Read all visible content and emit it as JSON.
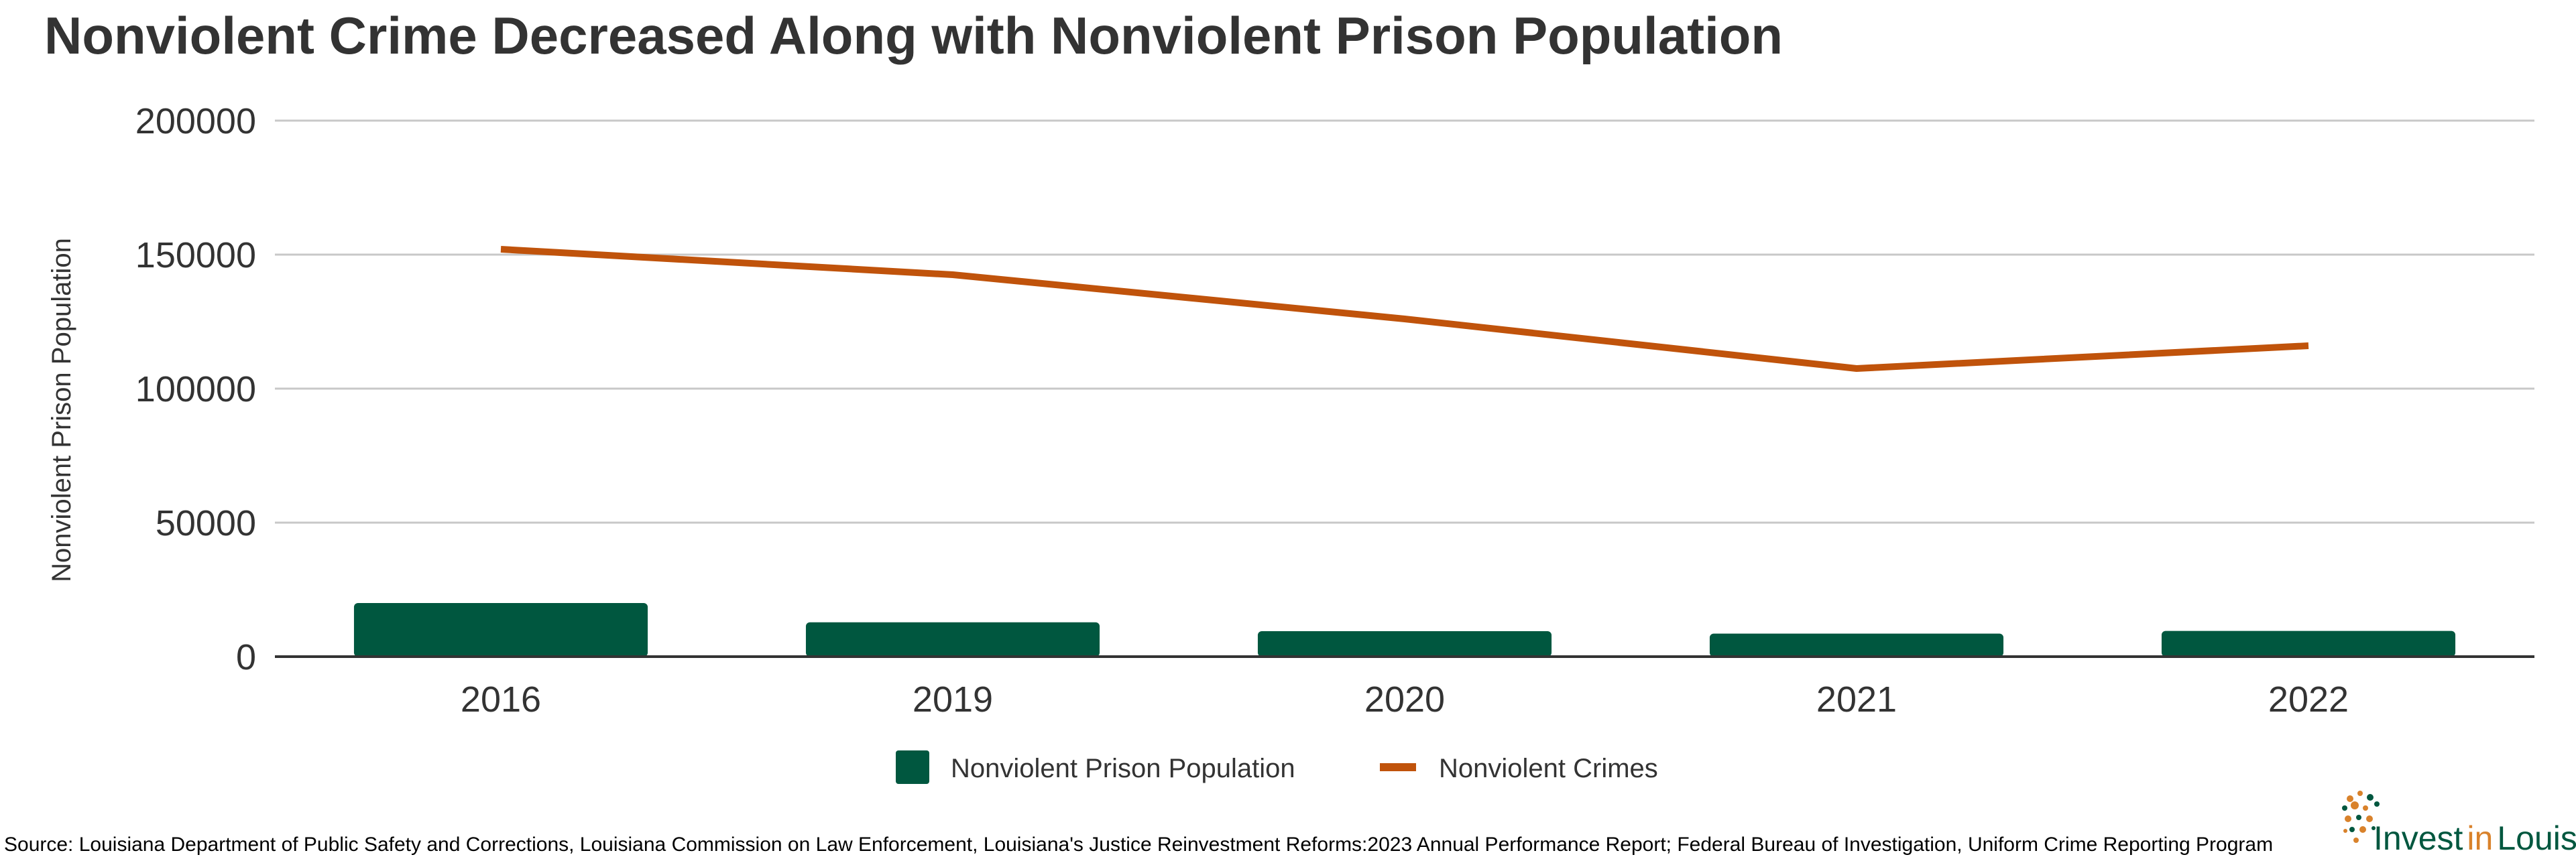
{
  "chart_data": {
    "type": "bar+line",
    "title": "Nonviolent Crime Decreased Along with Nonviolent Prison Population",
    "ylabel": "Nonviolent Prison Population",
    "xlabel": "",
    "categories": [
      "2016",
      "2019",
      "2020",
      "2021",
      "2022"
    ],
    "ylim": [
      0,
      200000
    ],
    "yticks": [
      0,
      50000,
      100000,
      150000,
      200000
    ],
    "grid": true,
    "legend_position": "bottom",
    "series": [
      {
        "name": "Nonviolent Prison Population",
        "type": "bar",
        "color": "#00573f",
        "values": [
          20000,
          12800,
          9500,
          8600,
          9600
        ]
      },
      {
        "name": "Nonviolent Crimes",
        "type": "line",
        "color": "#c0530b",
        "values": [
          152000,
          142500,
          126000,
          107500,
          116000
        ]
      }
    ]
  },
  "source": "Source: Louisiana Department of Public Safety and Corrections, Louisiana Commission on Law Enforcement, Louisiana's Justice Reinvestment Reforms:2023 Annual Performance Report; Federal Bureau of Investigation, Uniform Crime Reporting Program",
  "logo": {
    "word1": "Invest",
    "word2": "in",
    "word3": "Louisiana"
  },
  "colors": {
    "grid": "#c8c8c8",
    "axis": "#333333",
    "logo_green": "#00573f",
    "logo_orange": "#d9822b"
  }
}
